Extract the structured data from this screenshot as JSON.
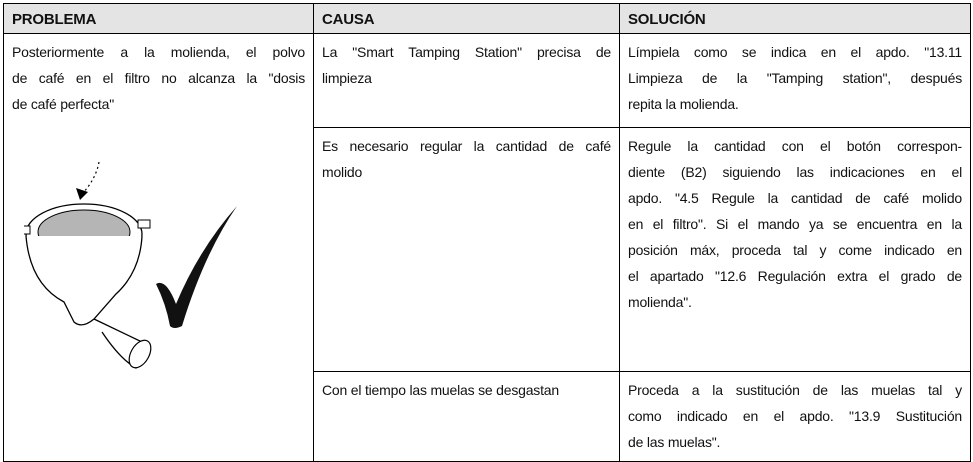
{
  "table": {
    "headers": [
      "PROBLEMA",
      "CAUSA",
      "SOLUCIÓN"
    ],
    "problem": [
      "Posteriormente a la molienda, el polvo",
      "de café en el filtro no alcanza la \"dosis",
      "de café perfecta\""
    ],
    "rows": [
      {
        "cause": [
          "La \"Smart Tamping Station\" precisa de",
          "limpieza"
        ],
        "solution": [
          "Límpiela como se indica en el apdo. \"13.11",
          "Limpieza de la \"Tamping station\", después",
          "repita la molienda."
        ]
      },
      {
        "cause": [
          "Es necesario regular la cantidad de café",
          "molido"
        ],
        "solution": [
          "Regule la cantidad con el botón correspon-",
          "diente (B2) siguiendo las indicaciones en el",
          "apdo. \"4.5 Regule la cantidad de café molido",
          "en el filtro\". Si el mando ya se encuentra en la",
          "posición máx, proceda tal y come indicado en",
          "el apartado \"12.6 Regulación extra el grado de",
          "molienda\"."
        ]
      },
      {
        "cause": [
          "Con el tiempo las muelas se desgastan"
        ],
        "solution": [
          "Proceda a la sustitución de las muelas tal y",
          "como indicado en el apdo. \"13.9 Sustitución",
          "de las muelas\"."
        ]
      }
    ]
  }
}
